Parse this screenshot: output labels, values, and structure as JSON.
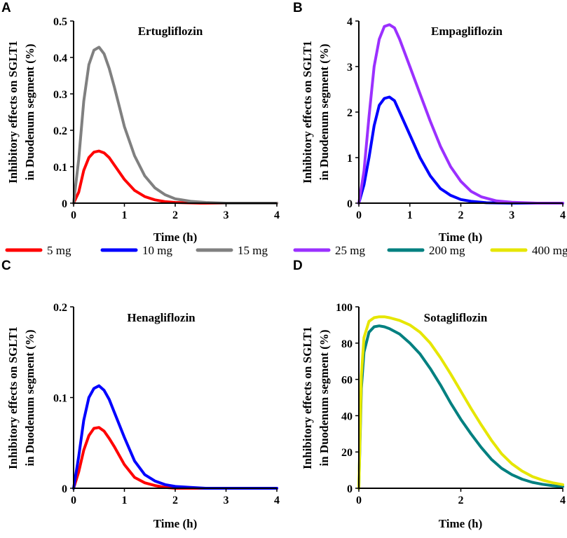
{
  "legend": [
    {
      "label": "5 mg",
      "color": "#ff0000"
    },
    {
      "label": "10 mg",
      "color": "#0000ff"
    },
    {
      "label": "15 mg",
      "color": "#808080"
    },
    {
      "label": "25 mg",
      "color": "#9b30ff"
    },
    {
      "label": "200 mg",
      "color": "#008080"
    },
    {
      "label": "400 mg",
      "color": "#e6e600"
    }
  ],
  "chart_data": [
    {
      "panel": "A",
      "type": "line",
      "title": "Ertugliflozin",
      "xlabel": "Time (h)",
      "ylabel_line1": "Inhibitory effects  on SGLT1",
      "ylabel_line2": "in Duodenum segment (%)",
      "xlim": [
        0,
        4
      ],
      "ylim": [
        0,
        0.5
      ],
      "xticks": [
        "0",
        "1",
        "2",
        "3",
        "4"
      ],
      "yticks": [
        "0",
        "0.1",
        "0.2",
        "0.3",
        "0.4",
        "0.5"
      ],
      "series": [
        {
          "name": "5 mg",
          "color": "#ff0000",
          "x": [
            0,
            0.1,
            0.2,
            0.3,
            0.4,
            0.5,
            0.6,
            0.7,
            0.8,
            1.0,
            1.2,
            1.4,
            1.6,
            1.8,
            2.0,
            2.5,
            3.0,
            4.0
          ],
          "y": [
            0,
            0.03,
            0.09,
            0.125,
            0.14,
            0.143,
            0.138,
            0.125,
            0.105,
            0.065,
            0.035,
            0.018,
            0.009,
            0.004,
            0.002,
            0,
            0,
            0
          ]
        },
        {
          "name": "15 mg",
          "color": "#808080",
          "x": [
            0,
            0.1,
            0.2,
            0.3,
            0.4,
            0.5,
            0.6,
            0.7,
            0.8,
            0.9,
            1.0,
            1.2,
            1.4,
            1.6,
            1.8,
            2.0,
            2.3,
            2.6,
            3.0,
            3.5,
            4.0
          ],
          "y": [
            0,
            0.12,
            0.28,
            0.38,
            0.42,
            0.428,
            0.41,
            0.37,
            0.32,
            0.265,
            0.21,
            0.13,
            0.075,
            0.042,
            0.023,
            0.012,
            0.005,
            0.002,
            0,
            0,
            0
          ]
        }
      ]
    },
    {
      "panel": "B",
      "type": "line",
      "title": "Empagliflozin",
      "xlabel": "Time (h)",
      "ylabel_line1": "Inhibitory effects  on SGLT1",
      "ylabel_line2": "in Duodenum segment (%)",
      "xlim": [
        0,
        4
      ],
      "ylim": [
        0,
        4
      ],
      "xticks": [
        "0",
        "1",
        "2",
        "3",
        "4"
      ],
      "yticks": [
        "0",
        "1",
        "2",
        "3",
        "4"
      ],
      "series": [
        {
          "name": "10 mg",
          "color": "#0000ff",
          "x": [
            0,
            0.1,
            0.2,
            0.3,
            0.4,
            0.5,
            0.6,
            0.7,
            0.8,
            1.0,
            1.2,
            1.4,
            1.6,
            1.8,
            2.0,
            2.2,
            2.5,
            3.0,
            4.0
          ],
          "y": [
            0,
            0.4,
            1.0,
            1.7,
            2.15,
            2.3,
            2.33,
            2.25,
            2.0,
            1.5,
            1.0,
            0.6,
            0.32,
            0.17,
            0.08,
            0.04,
            0.01,
            0,
            0
          ]
        },
        {
          "name": "25 mg",
          "color": "#9b30ff",
          "x": [
            0,
            0.1,
            0.2,
            0.3,
            0.4,
            0.5,
            0.6,
            0.7,
            0.8,
            1.0,
            1.2,
            1.4,
            1.6,
            1.8,
            2.0,
            2.2,
            2.4,
            2.7,
            3.0,
            3.5,
            4.0
          ],
          "y": [
            0,
            0.7,
            1.9,
            3.0,
            3.6,
            3.88,
            3.92,
            3.85,
            3.6,
            3.0,
            2.4,
            1.8,
            1.25,
            0.8,
            0.48,
            0.26,
            0.14,
            0.05,
            0.02,
            0,
            0
          ]
        }
      ]
    },
    {
      "panel": "C",
      "type": "line",
      "title": "Henagliflozin",
      "xlabel": "Time (h)",
      "ylabel_line1": "Inhibitory effects  on SGLT1",
      "ylabel_line2": "in Duodenum segment (%)",
      "xlim": [
        0,
        4
      ],
      "ylim": [
        0,
        0.2
      ],
      "xticks": [
        "0",
        "1",
        "2",
        "3",
        "4"
      ],
      "yticks": [
        "0",
        "0.1",
        "0.2"
      ],
      "series": [
        {
          "name": "5 mg",
          "color": "#ff0000",
          "x": [
            0,
            0.1,
            0.2,
            0.3,
            0.4,
            0.5,
            0.6,
            0.7,
            0.8,
            1.0,
            1.2,
            1.4,
            1.6,
            1.8,
            2.0,
            2.5,
            3.0,
            4.0
          ],
          "y": [
            0,
            0.018,
            0.042,
            0.058,
            0.066,
            0.067,
            0.063,
            0.055,
            0.046,
            0.026,
            0.012,
            0.006,
            0.003,
            0.001,
            0,
            0,
            0,
            0
          ]
        },
        {
          "name": "10 mg",
          "color": "#0000ff",
          "x": [
            0,
            0.1,
            0.2,
            0.3,
            0.4,
            0.5,
            0.6,
            0.7,
            0.8,
            1.0,
            1.2,
            1.4,
            1.6,
            1.8,
            2.0,
            2.3,
            2.6,
            3.0,
            4.0
          ],
          "y": [
            0,
            0.035,
            0.075,
            0.1,
            0.11,
            0.113,
            0.108,
            0.098,
            0.084,
            0.056,
            0.03,
            0.015,
            0.008,
            0.004,
            0.002,
            0.001,
            0,
            0,
            0
          ]
        }
      ]
    },
    {
      "panel": "D",
      "type": "line",
      "title": "Sotagliflozin",
      "xlabel": "Time (h)",
      "ylabel_line1": "Inhibitory effects  on SGLT1",
      "ylabel_line2": "in Duodenum segment (%)",
      "xlim": [
        0,
        4
      ],
      "ylim": [
        0,
        100
      ],
      "xticks": [
        "0",
        "2",
        "4"
      ],
      "xtick_values": [
        0,
        2,
        4
      ],
      "yticks": [
        "0",
        "20",
        "40",
        "60",
        "80",
        "100"
      ],
      "series": [
        {
          "name": "200 mg",
          "color": "#008080",
          "x": [
            0,
            0.05,
            0.1,
            0.2,
            0.3,
            0.4,
            0.5,
            0.6,
            0.8,
            1.0,
            1.2,
            1.4,
            1.6,
            1.8,
            2.0,
            2.2,
            2.4,
            2.6,
            2.8,
            3.0,
            3.2,
            3.4,
            3.6,
            3.8,
            4.0
          ],
          "y": [
            0,
            55,
            75,
            86,
            89,
            89.5,
            89,
            88,
            85,
            80,
            74,
            66,
            57,
            47,
            38,
            30,
            22.5,
            16,
            11,
            7.5,
            5,
            3.3,
            2.2,
            1.4,
            0.9
          ]
        },
        {
          "name": "400 mg",
          "color": "#e6e600",
          "x": [
            0,
            0.05,
            0.1,
            0.2,
            0.3,
            0.4,
            0.5,
            0.6,
            0.8,
            1.0,
            1.2,
            1.4,
            1.6,
            1.8,
            2.0,
            2.2,
            2.4,
            2.6,
            2.8,
            3.0,
            3.2,
            3.4,
            3.6,
            3.8,
            4.0
          ],
          "y": [
            0,
            62,
            83,
            92,
            94,
            94.5,
            94.5,
            94,
            92.5,
            90,
            86,
            80,
            72,
            63,
            53.5,
            44,
            35,
            26.5,
            19,
            13.5,
            9.5,
            6.5,
            4.5,
            3,
            2
          ]
        }
      ]
    }
  ]
}
